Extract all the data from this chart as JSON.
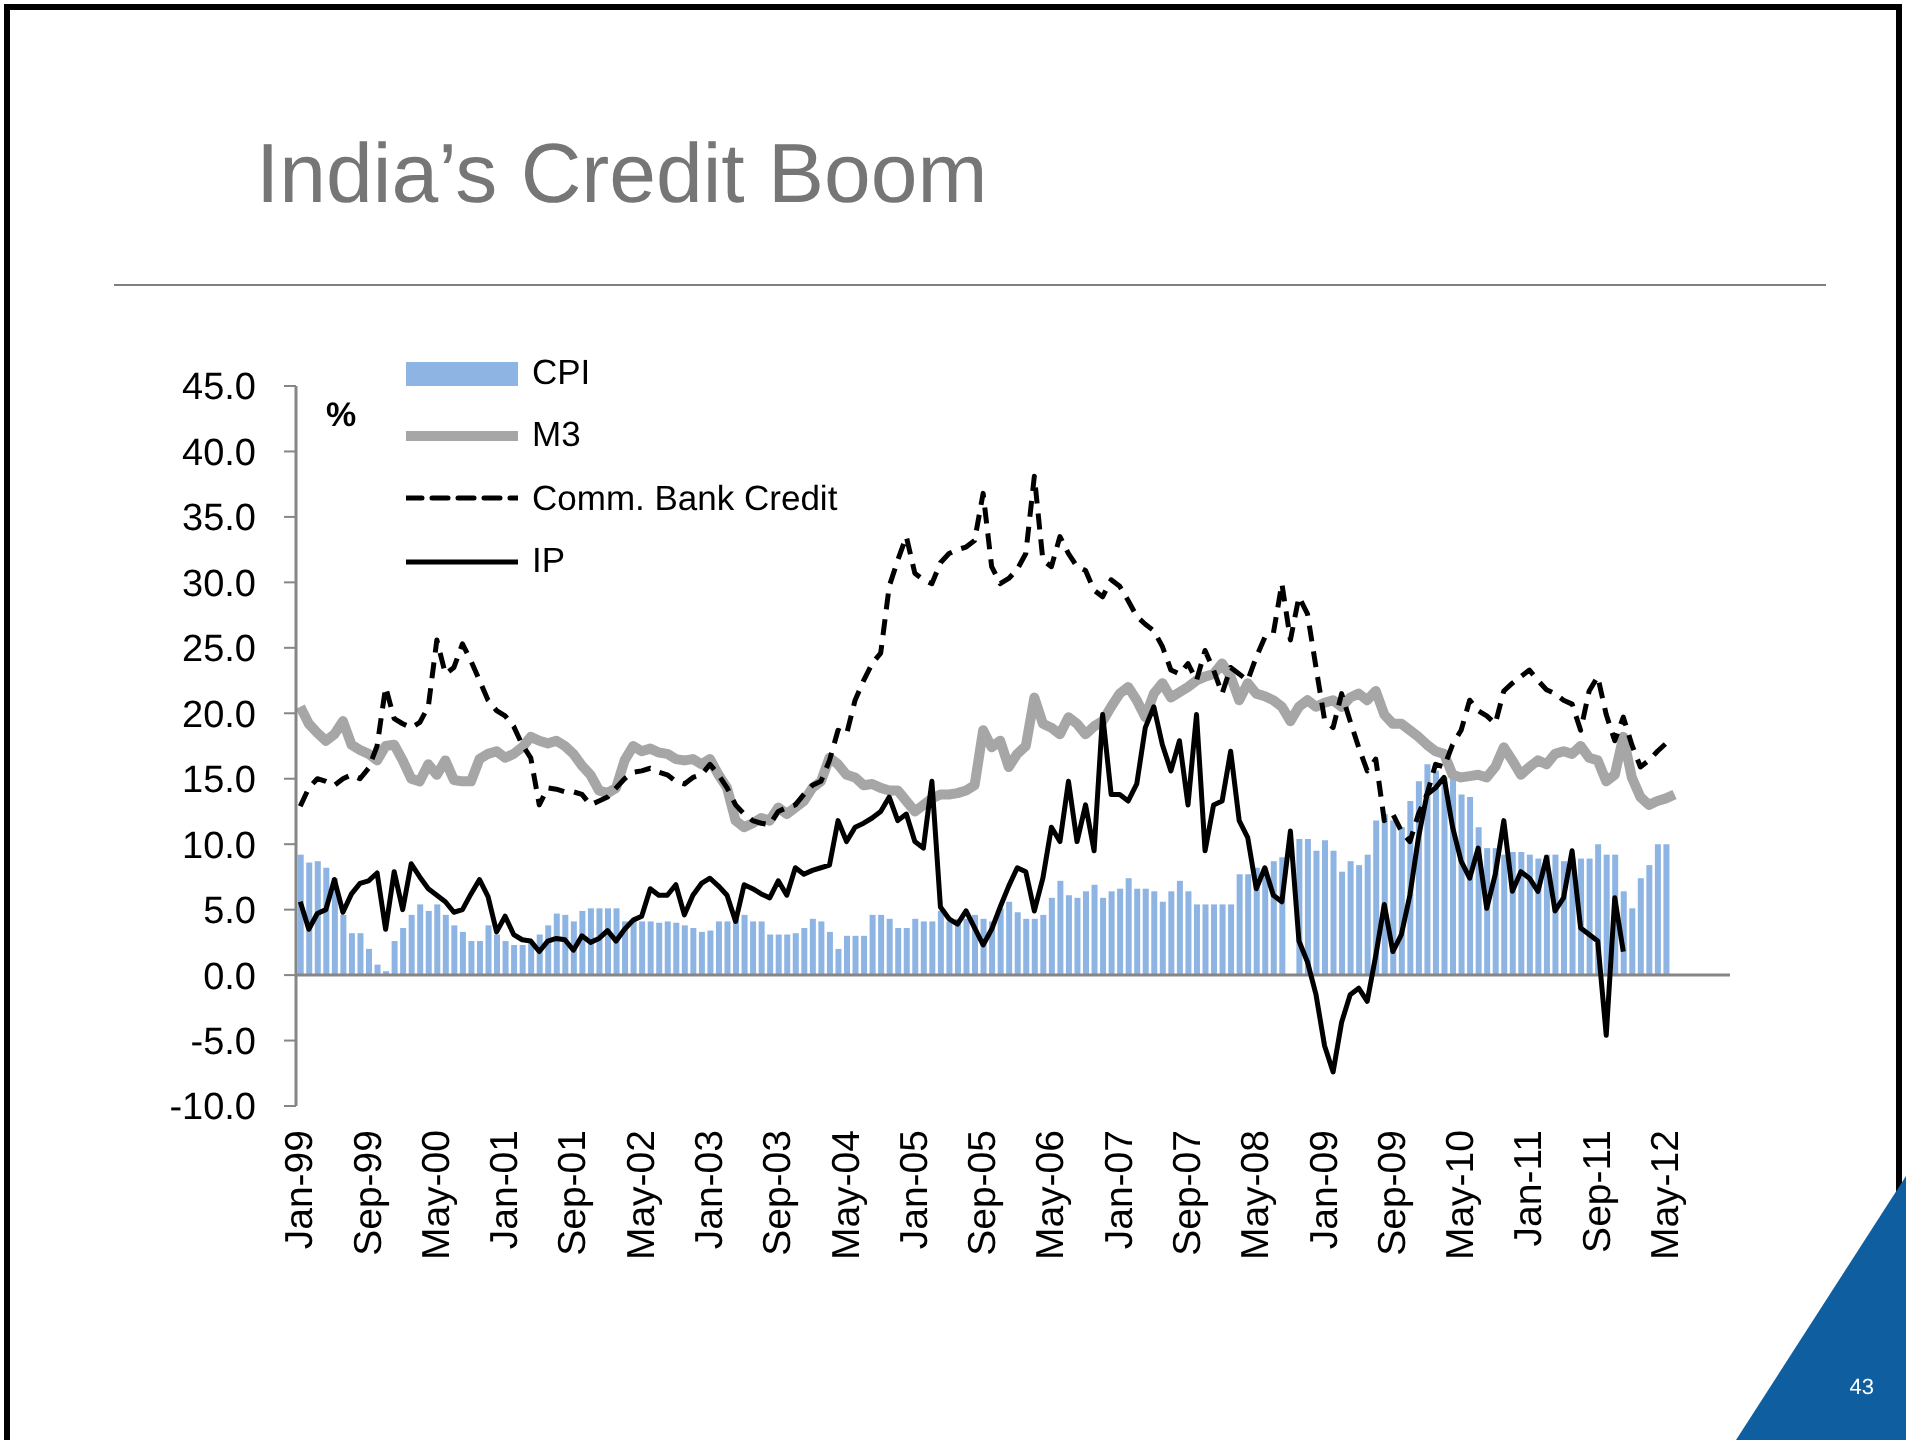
{
  "chart_data": {
    "type": "bar",
    "title": "India’s Credit Boom",
    "ylabel": "%",
    "annotations": [
      "43"
    ],
    "categories": [
      "Jan-99",
      null,
      null,
      null,
      null,
      null,
      null,
      null,
      "Sep-99",
      null,
      null,
      null,
      null,
      null,
      null,
      null,
      "May-00",
      null,
      null,
      null,
      null,
      null,
      null,
      null,
      "Jan-01",
      null,
      null,
      null,
      null,
      null,
      null,
      null,
      "Sep-01",
      null,
      null,
      null,
      null,
      null,
      null,
      null,
      "May-02",
      null,
      null,
      null,
      null,
      null,
      null,
      null,
      "Jan-03",
      null,
      null,
      null,
      null,
      null,
      null,
      null,
      "Sep-03",
      null,
      null,
      null,
      null,
      null,
      null,
      null,
      "May-04",
      null,
      null,
      null,
      null,
      null,
      null,
      null,
      "Jan-05",
      null,
      null,
      null,
      null,
      null,
      null,
      null,
      "Sep-05",
      null,
      null,
      null,
      null,
      null,
      null,
      null,
      "May-06",
      null,
      null,
      null,
      null,
      null,
      null,
      null,
      "Jan-07",
      null,
      null,
      null,
      null,
      null,
      null,
      null,
      "Sep-07",
      null,
      null,
      null,
      null,
      null,
      null,
      null,
      "May-08",
      null,
      null,
      null,
      null,
      null,
      null,
      null,
      "Jan-09",
      null,
      null,
      null,
      null,
      null,
      null,
      null,
      "Sep-09",
      null,
      null,
      null,
      null,
      null,
      null,
      null,
      "May-10",
      null,
      null,
      null,
      null,
      null,
      null,
      null,
      "Jan-11",
      null,
      null,
      null,
      null,
      null,
      null,
      null,
      "Sep-11",
      null,
      null,
      null,
      null,
      null,
      null,
      null,
      "May-12",
      null,
      null,
      null,
      null,
      null,
      null,
      null
    ],
    "series": [
      {
        "name": "CPI",
        "color": "#8db4e2",
        "values": [
          9.2,
          8.6,
          8.7,
          8.2,
          7.4,
          4.6,
          3.2,
          3.2,
          2.0,
          0.8,
          0.3,
          2.6,
          3.6,
          4.6,
          5.4,
          4.9,
          5.4,
          4.6,
          3.8,
          3.3,
          2.6,
          2.6,
          3.8,
          3.1,
          2.6,
          2.3,
          2.3,
          2.6,
          3.1,
          3.8,
          4.7,
          4.6,
          4.1,
          4.9,
          5.1,
          5.1,
          5.1,
          5.1,
          4.1,
          4.1,
          4.1,
          4.1,
          4.0,
          4.1,
          4.0,
          3.8,
          3.6,
          3.3,
          3.4,
          4.1,
          4.1,
          4.3,
          4.6,
          4.1,
          4.1,
          3.1,
          3.1,
          3.1,
          3.2,
          3.6,
          4.3,
          4.1,
          3.3,
          2.0,
          3.0,
          3.0,
          3.0,
          4.6,
          4.6,
          4.3,
          3.6,
          3.6,
          4.3,
          4.1,
          4.1,
          4.9,
          4.1,
          4.3,
          4.3,
          4.6,
          4.3,
          4.1,
          5.1,
          5.6,
          4.8,
          4.3,
          4.3,
          4.6,
          5.9,
          7.2,
          6.1,
          5.9,
          6.4,
          6.9,
          5.9,
          6.4,
          6.6,
          7.4,
          6.6,
          6.6,
          6.4,
          5.6,
          6.4,
          7.2,
          6.4,
          5.4,
          5.4,
          5.4,
          5.4,
          5.4,
          7.7,
          7.7,
          8.2,
          8.2,
          8.7,
          9.0,
          null,
          10.4,
          10.4,
          9.5,
          10.3,
          9.5,
          7.9,
          8.7,
          8.4,
          9.2,
          11.8,
          12.3,
          11.8,
          11.3,
          13.3,
          14.8,
          16.1,
          15.6,
          15.1,
          15.1,
          13.8,
          13.6,
          11.3,
          9.7,
          9.7,
          9.2,
          9.4,
          9.4,
          9.2,
          8.9,
          9.2,
          9.2,
          8.7,
          8.9,
          8.9,
          8.9,
          10.0,
          9.2,
          9.2,
          6.4,
          5.1,
          7.4,
          8.4,
          10.0,
          10.0,
          null,
          null,
          null,
          null,
          null,
          null,
          null
        ]
      },
      {
        "name": "M3",
        "type": "line",
        "color": "#a6a6a6",
        "values": [
          20.5,
          19.2,
          18.5,
          17.9,
          18.4,
          19.4,
          17.6,
          17.2,
          16.9,
          16.4,
          17.5,
          17.6,
          16.4,
          15.0,
          14.8,
          16.1,
          15.3,
          16.4,
          14.9,
          14.8,
          14.8,
          16.5,
          16.9,
          17.1,
          16.6,
          16.9,
          17.4,
          18.2,
          17.9,
          17.7,
          17.9,
          17.5,
          16.9,
          16.0,
          15.3,
          14.1,
          13.9,
          14.3,
          16.4,
          17.5,
          17.1,
          17.3,
          17.0,
          16.9,
          16.5,
          16.4,
          16.5,
          16.1,
          16.5,
          15.3,
          14.3,
          11.8,
          11.3,
          11.6,
          12.0,
          11.8,
          12.8,
          12.3,
          12.8,
          13.3,
          14.3,
          14.8,
          16.6,
          16.1,
          15.3,
          15.1,
          14.5,
          14.6,
          14.3,
          14.1,
          14.1,
          13.3,
          12.5,
          13.0,
          13.5,
          13.8,
          13.8,
          13.9,
          14.1,
          14.5,
          18.7,
          17.4,
          17.9,
          15.9,
          16.9,
          17.5,
          21.2,
          19.2,
          18.9,
          18.4,
          19.7,
          19.2,
          18.4,
          19.0,
          19.4,
          20.5,
          21.5,
          22.0,
          21.0,
          19.7,
          21.5,
          22.3,
          21.2,
          21.6,
          22.0,
          22.5,
          22.8,
          23.0,
          23.8,
          22.8,
          21.0,
          22.3,
          21.5,
          21.3,
          21.0,
          20.5,
          19.4,
          20.5,
          21.0,
          20.5,
          20.8,
          21.0,
          20.5,
          21.2,
          21.5,
          21.0,
          21.7,
          19.9,
          19.2,
          19.2,
          18.7,
          18.2,
          17.6,
          17.1,
          16.9,
          15.3,
          15.1,
          15.2,
          15.3,
          15.1,
          15.9,
          17.4,
          16.4,
          15.3,
          15.9,
          16.4,
          16.1,
          16.9,
          17.1,
          16.9,
          17.5,
          16.6,
          16.4,
          14.8,
          15.3,
          18.2,
          15.1,
          13.6,
          13.0,
          13.3,
          13.5,
          13.8,
          null,
          null,
          null,
          null,
          null,
          null
        ]
      },
      {
        "name": "Comm. Bank Credit",
        "type": "line",
        "color": "#000000",
        "line_style": "dashed",
        "values": [
          12.9,
          14.3,
          15.0,
          14.8,
          14.5,
          15.0,
          15.3,
          15.0,
          15.8,
          17.5,
          22.0,
          19.6,
          19.2,
          18.9,
          19.3,
          20.5,
          25.6,
          23.0,
          23.5,
          25.3,
          24.0,
          22.5,
          21.0,
          20.2,
          19.8,
          19.0,
          17.6,
          16.6,
          13.0,
          14.3,
          14.2,
          14.0,
          14.0,
          13.8,
          13.0,
          13.3,
          13.6,
          14.3,
          15.0,
          15.5,
          15.6,
          15.8,
          15.5,
          15.3,
          14.8,
          14.6,
          15.1,
          15.3,
          16.1,
          15.3,
          14.3,
          13.0,
          12.3,
          11.8,
          11.6,
          11.5,
          12.5,
          12.8,
          13.0,
          13.8,
          14.5,
          14.8,
          16.4,
          18.7,
          18.4,
          21.0,
          22.5,
          23.8,
          24.6,
          29.7,
          31.7,
          33.5,
          30.7,
          30.2,
          29.9,
          31.5,
          32.2,
          32.5,
          32.7,
          33.2,
          36.8,
          31.2,
          29.9,
          30.3,
          31.0,
          32.2,
          38.1,
          31.7,
          31.2,
          33.5,
          32.2,
          31.2,
          30.9,
          29.4,
          28.9,
          30.2,
          29.7,
          28.6,
          27.4,
          26.8,
          26.3,
          25.1,
          23.3,
          23.0,
          23.8,
          22.5,
          24.8,
          23.3,
          21.5,
          23.5,
          23.0,
          22.5,
          24.3,
          25.8,
          26.1,
          29.9,
          25.6,
          28.9,
          27.6,
          23.5,
          19.5,
          18.9,
          21.5,
          19.4,
          17.4,
          15.6,
          16.5,
          11.8,
          12.3,
          11.0,
          10.2,
          12.3,
          13.8,
          16.1,
          15.9,
          17.6,
          18.7,
          21.0,
          20.2,
          19.8,
          19.2,
          21.7,
          22.3,
          22.8,
          23.3,
          22.5,
          21.8,
          21.5,
          21.0,
          20.7,
          18.7,
          21.7,
          22.8,
          19.9,
          17.9,
          19.7,
          17.6,
          15.9,
          16.4,
          17.1,
          17.7,
          null,
          null,
          null,
          null,
          null,
          null,
          null
        ]
      },
      {
        "name": "IP",
        "type": "line",
        "color": "#000000",
        "values": [
          5.6,
          3.5,
          4.7,
          5.0,
          7.3,
          4.8,
          6.2,
          7.0,
          7.2,
          7.8,
          3.5,
          7.9,
          5.0,
          8.5,
          7.5,
          6.6,
          6.1,
          5.6,
          4.8,
          5.0,
          6.2,
          7.3,
          6.0,
          3.3,
          4.5,
          3.1,
          2.7,
          2.6,
          1.8,
          2.6,
          2.8,
          2.7,
          1.9,
          3.0,
          2.5,
          2.8,
          3.4,
          2.6,
          3.5,
          4.2,
          4.5,
          6.6,
          6.1,
          6.1,
          6.9,
          4.6,
          6.1,
          7.0,
          7.4,
          6.8,
          6.1,
          4.1,
          6.9,
          6.6,
          6.2,
          5.9,
          7.2,
          6.1,
          8.2,
          7.7,
          8.0,
          8.2,
          8.4,
          11.8,
          10.2,
          11.3,
          11.6,
          12.0,
          12.5,
          13.6,
          11.8,
          12.3,
          10.2,
          9.7,
          14.8,
          5.2,
          4.3,
          3.9,
          4.9,
          3.6,
          2.3,
          3.5,
          5.2,
          6.8,
          8.2,
          7.9,
          4.9,
          7.4,
          11.3,
          10.2,
          14.8,
          10.2,
          13.0,
          9.5,
          19.9,
          13.8,
          13.8,
          13.3,
          14.6,
          18.9,
          20.5,
          17.6,
          15.6,
          17.9,
          13.0,
          19.9,
          9.5,
          13.0,
          13.3,
          17.1,
          11.8,
          10.5,
          6.6,
          8.2,
          6.1,
          5.6,
          11.0,
          2.6,
          1.0,
          -1.5,
          -5.4,
          -7.4,
          -3.6,
          -1.5,
          -1.0,
          -2.0,
          1.5,
          5.4,
          1.8,
          3.1,
          6.1,
          10.5,
          13.8,
          14.3,
          15.1,
          11.3,
          8.7,
          7.4,
          9.7,
          5.1,
          7.7,
          11.8,
          6.4,
          7.9,
          7.4,
          6.4,
          9.0,
          4.9,
          5.9,
          9.5,
          3.6,
          3.1,
          2.6,
          -4.6,
          5.9,
          1.8,
          null,
          null,
          null,
          null,
          null,
          null,
          null,
          null,
          null,
          null,
          null,
          null
        ]
      }
    ],
    "ylim": [
      -10,
      45
    ],
    "yticks": [
      {
        "value": -10,
        "label": "-10.0"
      },
      {
        "value": -5,
        "label": "-5.0"
      },
      {
        "value": 0,
        "label": "0.0"
      },
      {
        "value": 5,
        "label": "5.0"
      },
      {
        "value": 10,
        "label": "10.0"
      },
      {
        "value": 15,
        "label": "15.0"
      },
      {
        "value": 20,
        "label": "20.0"
      },
      {
        "value": 25,
        "label": "25.0"
      },
      {
        "value": 30,
        "label": "30.0"
      },
      {
        "value": 35,
        "label": "35.0"
      },
      {
        "value": 40,
        "label": "40.0"
      },
      {
        "value": 45,
        "label": "45.0"
      }
    ],
    "legend": "top left",
    "line_style": "solid"
  }
}
